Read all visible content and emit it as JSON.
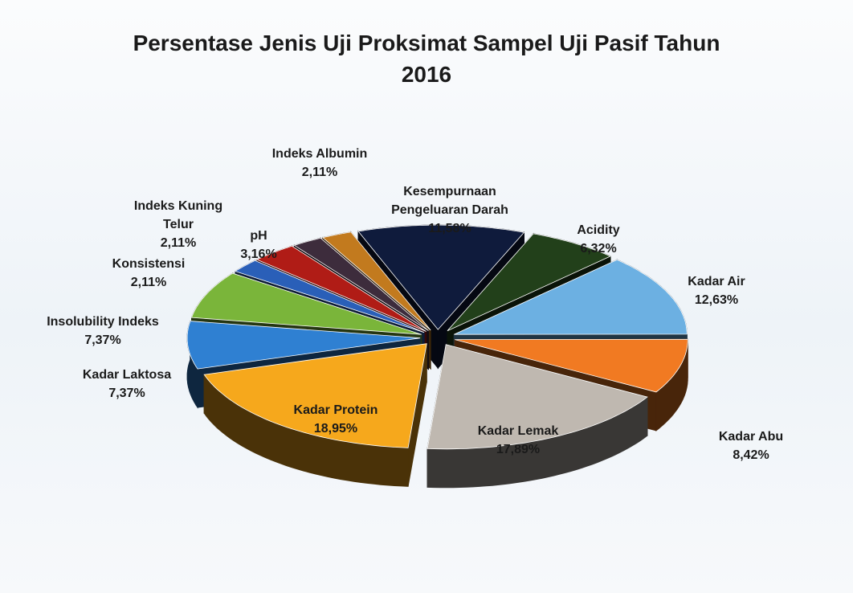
{
  "chart_data": {
    "type": "pie",
    "title": "Persentase Jenis Uji Proksimat Sampel Uji Pasif Tahun 2016",
    "categories": [
      "Kesempurnaan Pengeluaran Darah",
      "Acidity",
      "Kadar Air",
      "Kadar Abu",
      "Kadar Lemak",
      "Kadar Protein",
      "Kadar Laktosa",
      "Insolubility Indeks",
      "Konsistensi",
      "pH",
      "Indeks Kuning Telur",
      "Indeks Albumin"
    ],
    "values": [
      11.58,
      6.32,
      12.63,
      8.42,
      17.89,
      18.95,
      7.37,
      7.37,
      2.11,
      3.16,
      2.11,
      2.11
    ],
    "value_labels": [
      "11,58%",
      "6,32%",
      "12,63%",
      "8,42%",
      "17,89%",
      "18,95%",
      "7,37%",
      "7,37%",
      "2,11%",
      "3,16%",
      "2,11%",
      "2,11%"
    ],
    "colors": [
      "#0f1b3c",
      "#22401a",
      "#6cb0e2",
      "#f17a22",
      "#bfb8b0",
      "#f6a81c",
      "#2f80d2",
      "#7ab53a",
      "#2a5fb8",
      "#b01c16",
      "#3d2c3c",
      "#c27a1e"
    ]
  }
}
